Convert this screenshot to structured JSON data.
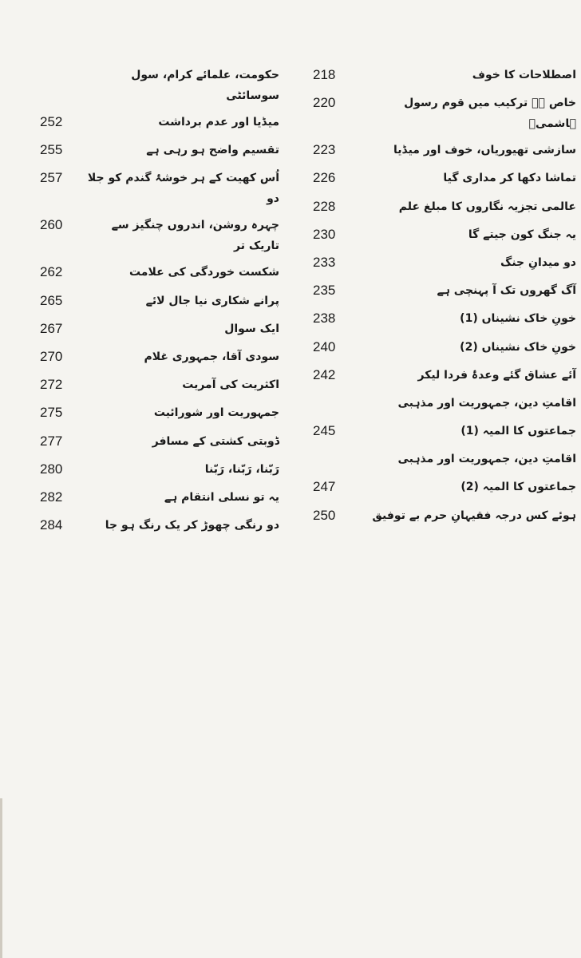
{
  "right_column": {
    "entries": [
      {
        "title": "اصطلاحات کا خوف",
        "page": "218"
      },
      {
        "title": "خاص ہے ترکیب میں قوم رسول ہاشمیؐ",
        "page": "220"
      },
      {
        "title": "سازشی تھیوریاں، خوف اور میڈیا",
        "page": "223"
      },
      {
        "title": "تماشا دکھا کر مداری گیا",
        "page": "226"
      },
      {
        "title": "عالمی تجزیہ نگاروں کا مبلغ علم",
        "page": "228"
      },
      {
        "title": "یہ جنگ کون جیتے گا",
        "page": "230"
      },
      {
        "title": "دو میدانِ جنگ",
        "page": "233"
      },
      {
        "title": "آگ گھروں تک آ پہنچی ہے",
        "page": "235"
      },
      {
        "title": "خونِ خاک نشیناں (1)",
        "page": "238"
      },
      {
        "title": "خونِ خاک نشیناں (2)",
        "page": "240"
      },
      {
        "title": "آئے عشاق گئے وعدۂ فردا لیکر",
        "page": "242"
      },
      {
        "title": "اقامتِ دین، جمہوریت اور مذہبی",
        "page": ""
      },
      {
        "title": "جماعتوں کا المیہ (1)",
        "page": "245"
      },
      {
        "title": "اقامتِ دین، جمہوریت اور مذہبی",
        "page": ""
      },
      {
        "title": "جماعتوں کا المیہ (2)",
        "page": "247"
      },
      {
        "title": "ہوئے کس درجہ فقیہانِ حرم بے توفیق",
        "page": "250"
      }
    ]
  },
  "left_column": {
    "entries": [
      {
        "title": "حکومت، علمائے کرام، سول سوسائٹی",
        "page": ""
      },
      {
        "title": "میڈیا اور عدم برداشت",
        "page": "252"
      },
      {
        "title": "تقسیم واضح ہو رہی ہے",
        "page": "255"
      },
      {
        "title": "اُس کھیت کے ہر خوشۂ گندم کو جلا دو",
        "page": "257"
      },
      {
        "title": "چہرہ روشن، اندروں چنگیز سے تاریک تر",
        "page": "260"
      },
      {
        "title": "شکست خوردگی کی علامت",
        "page": "262"
      },
      {
        "title": "پرانے شکاری نیا جال لائے",
        "page": "265"
      },
      {
        "title": "ایک سوال",
        "page": "267"
      },
      {
        "title": "سودی آقا، جمہوری غلام",
        "page": "270"
      },
      {
        "title": "اکثریت کی آمریت",
        "page": "272"
      },
      {
        "title": "جمہوریت اور شورائیت",
        "page": "275"
      },
      {
        "title": "ڈوبتی کشتی کے مسافر",
        "page": "277"
      },
      {
        "title": "رَبّنا، رَبّنا، رَبّنا",
        "page": "280"
      },
      {
        "title": "یہ تو نسلی انتقام ہے",
        "page": "282"
      },
      {
        "title": "دو رنگی چھوڑ کر یک رنگ ہو جا",
        "page": "284"
      }
    ]
  }
}
